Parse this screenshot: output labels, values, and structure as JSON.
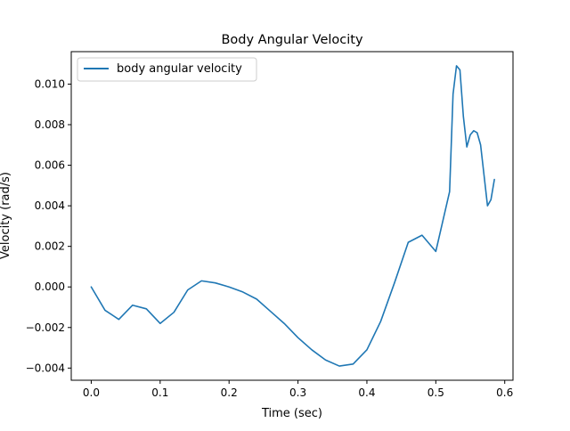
{
  "chart_data": {
    "type": "line",
    "title": "Body Angular Velocity",
    "xlabel": "Time (sec)",
    "ylabel": "Velocity (rad/s)",
    "xlim": [
      -0.029,
      0.612
    ],
    "ylim": [
      -0.0046,
      0.0116
    ],
    "xticks": [
      0.0,
      0.1,
      0.2,
      0.3,
      0.4,
      0.5,
      0.6
    ],
    "xtick_labels": [
      "0.0",
      "0.1",
      "0.2",
      "0.3",
      "0.4",
      "0.5",
      "0.6"
    ],
    "yticks": [
      -0.004,
      -0.002,
      0.0,
      0.002,
      0.004,
      0.006,
      0.008,
      0.01
    ],
    "ytick_labels": [
      "−0.004",
      "−0.002",
      "0.000",
      "0.002",
      "0.004",
      "0.006",
      "0.008",
      "0.010"
    ],
    "grid": false,
    "legend_position": "top-left",
    "series": [
      {
        "name": "body angular velocity",
        "color": "#1f77b4",
        "x": [
          0.0,
          0.02,
          0.04,
          0.06,
          0.08,
          0.1,
          0.12,
          0.14,
          0.16,
          0.18,
          0.2,
          0.22,
          0.24,
          0.26,
          0.28,
          0.3,
          0.32,
          0.34,
          0.36,
          0.38,
          0.4,
          0.42,
          0.44,
          0.46,
          0.48,
          0.5,
          0.52,
          0.525,
          0.53,
          0.535,
          0.54,
          0.545,
          0.55,
          0.555,
          0.56,
          0.565,
          0.57,
          0.575,
          0.58,
          0.585
        ],
        "y": [
          0.0,
          -0.00115,
          -0.0016,
          -0.0009,
          -0.00108,
          -0.0018,
          -0.00125,
          -0.00015,
          0.0003,
          0.0002,
          0.0,
          -0.00025,
          -0.0006,
          -0.0012,
          -0.0018,
          -0.0025,
          -0.0031,
          -0.0036,
          -0.0039,
          -0.0038,
          -0.0031,
          -0.0017,
          0.0002,
          0.0022,
          0.00255,
          0.00175,
          0.0047,
          0.0095,
          0.0109,
          0.0107,
          0.0084,
          0.0069,
          0.0075,
          0.0077,
          0.0076,
          0.007,
          0.0055,
          0.004,
          0.0043,
          0.0053
        ]
      }
    ]
  }
}
